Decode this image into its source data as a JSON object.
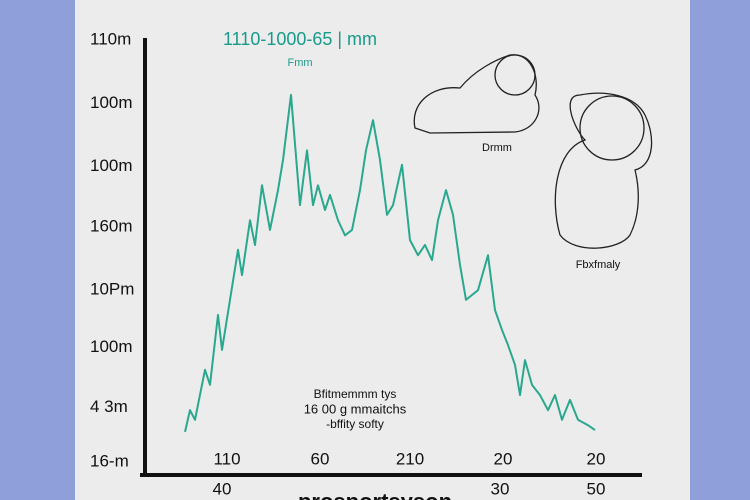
{
  "chart_data": {
    "type": "line",
    "x": [
      40,
      45,
      50,
      60,
      65,
      73,
      77,
      85,
      93,
      97,
      105,
      110,
      117,
      125,
      133,
      138,
      146,
      155,
      162,
      168,
      173,
      180,
      185,
      193,
      200,
      207,
      215,
      221,
      228,
      235,
      242,
      248,
      257,
      265,
      273,
      280,
      287,
      293,
      301,
      308,
      315,
      321,
      327,
      333,
      343,
      350,
      357,
      363,
      370,
      375,
      380,
      387,
      395,
      403,
      410,
      417,
      425,
      433,
      443,
      450
    ],
    "series": [
      {
        "color": "#2aa88f",
        "values": [
          0.5,
          0.86,
          0.7,
          1.53,
          1.28,
          2.44,
          1.86,
          2.69,
          3.52,
          3.1,
          4.01,
          3.6,
          4.59,
          3.85,
          4.51,
          5.01,
          6.09,
          4.26,
          5.17,
          4.26,
          4.59,
          4.18,
          4.43,
          4.01,
          3.76,
          3.85,
          4.51,
          5.17,
          5.67,
          5.01,
          4.1,
          4.26,
          4.93,
          3.68,
          3.43,
          3.6,
          3.35,
          4.01,
          4.51,
          4.1,
          3.27,
          2.69,
          2.77,
          2.85,
          3.43,
          2.52,
          2.19,
          1.94,
          1.61,
          1.11,
          1.69,
          1.28,
          1.11,
          0.86,
          1.11,
          0.7,
          1.03,
          0.7,
          0.61,
          0.53
        ]
      }
    ],
    "xlim": [
      0,
      500
    ],
    "ylim": [
      0,
      7
    ],
    "xticks": [
      {
        "value": 82,
        "label": "110"
      },
      {
        "value": 175,
        "label": "60"
      },
      {
        "value": 265,
        "label": "210"
      },
      {
        "value": 358,
        "label": "20"
      },
      {
        "value": 451,
        "label": "20"
      }
    ],
    "yticks": [
      {
        "value": 0,
        "label": "16-m"
      },
      {
        "value": 0.9,
        "label": "4 3m"
      },
      {
        "value": 1.9,
        "label": "100m"
      },
      {
        "value": 2.85,
        "label": "10Pm"
      },
      {
        "value": 3.9,
        "label": "160m"
      },
      {
        "value": 4.9,
        "label": "100m"
      },
      {
        "value": 5.95,
        "label": "100m"
      },
      {
        "value": 7,
        "label": "110m"
      }
    ],
    "x_labels_row2": [
      "40",
      "30",
      "50"
    ],
    "x_label": "prosportsyson",
    "annotations": [
      "1110-1000-65 | mm",
      "Fmm",
      "Drmm",
      "Fbxfmaly",
      "Bfitmemmm tys",
      "16 00 g mmaitchs",
      "-bffity softy"
    ]
  }
}
